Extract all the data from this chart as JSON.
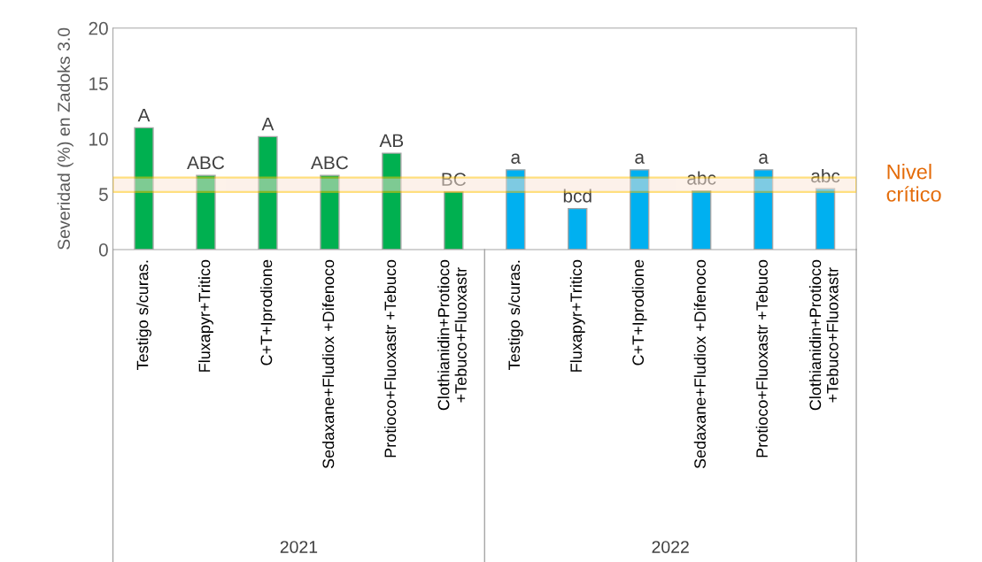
{
  "chart_data": {
    "type": "bar",
    "ylabel": "Severidad (%) en Zadoks 3.0",
    "categories": [
      "Testigo s/curas.",
      "Fluxapyr+Tritico",
      "C+T+Iprodione",
      "Sedaxane+Fludiox +Difenoco",
      "Protioco+Fluoxastr +Tebuco",
      "Clothianidin+Protioco\n+Tebuco+Fluoxastr",
      "Testigo s/curas.",
      "Fluxapyr+Tritico",
      "C+T+Iprodione",
      "Sedaxane+Fludiox +Difenoco",
      "Protioco+Fluoxastr +Tebuco",
      "Clothianidin+Protioco\n+Tebuco+Fluoxastr"
    ],
    "values": [
      11.0,
      6.7,
      10.2,
      6.7,
      8.7,
      5.2,
      7.2,
      3.7,
      7.2,
      5.3,
      7.2,
      5.5
    ],
    "colors": [
      "#00b050",
      "#00b050",
      "#00b050",
      "#00b050",
      "#00b050",
      "#00b050",
      "#00b0f0",
      "#00b0f0",
      "#00b0f0",
      "#00b0f0",
      "#00b0f0",
      "#00b0f0"
    ],
    "value_labels": [
      "A",
      "ABC",
      "A",
      "ABC",
      "AB",
      "BC",
      "a",
      "bcd",
      "a",
      "abc",
      "a",
      "abc"
    ],
    "annotations": [
      "2021",
      "2022"
    ],
    "bands": [
      {
        "axis": "y",
        "from": 5.2,
        "to": 6.5,
        "label": "Nivel crítico",
        "color": "#ffc000"
      }
    ],
    "ylim": [
      0,
      20
    ],
    "yticks": [
      0,
      5,
      10,
      15,
      20
    ],
    "grid": false,
    "legend": false
  }
}
